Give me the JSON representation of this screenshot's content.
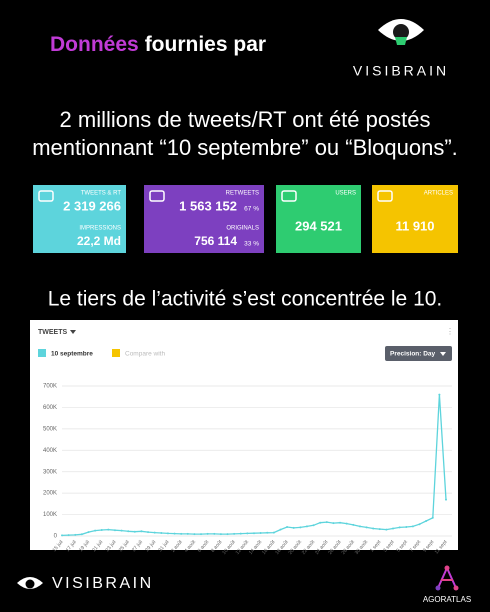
{
  "header": {
    "title_highlight": "Données",
    "title_rest": "fournies par",
    "brand": "VISIBRAIN"
  },
  "headline": [
    "2 millions de tweets/RT ont été postés",
    "mentionnant “10 septembre” ou “Bloquons”."
  ],
  "cards": [
    {
      "label": "TWEETS & RT",
      "value": "2 319 266",
      "sub_label": "IMPRESSIONS",
      "sub_value": "22,2 Md",
      "color": "#5dd4dc"
    },
    {
      "label": "RETWEETS",
      "value": "1 563 152",
      "value_share": "67 %",
      "sub_label": "ORIGINALS",
      "sub_value": "756 114",
      "sub_share": "33 %",
      "color": "#7d40c0"
    },
    {
      "label": "USERS",
      "value": "294 521",
      "color": "#2ecc71"
    },
    {
      "label": "ARTICLES",
      "value": "11 910",
      "color": "#f5c400"
    }
  ],
  "subheadline": "Le tiers de l’activité s’est concentrée le 10.",
  "chart_data": {
    "type": "line",
    "title": "TWEETS",
    "compare_label": "Compare with",
    "compare_color": "#f5c400",
    "precision_label": "Precision: Day",
    "categories": [
      "15 juil",
      null,
      "17 juil",
      null,
      "19 juil",
      null,
      "21 juil",
      null,
      "23 juil",
      null,
      "25 juil",
      null,
      "27 juil",
      null,
      "29 juil",
      null,
      "31 juil",
      null,
      "2 août",
      null,
      "4 août",
      null,
      "6 août",
      null,
      "8 août",
      null,
      "10 août",
      null,
      "12 août",
      null,
      "14 août",
      null,
      "16 août",
      null,
      "18 août",
      null,
      "20 août",
      null,
      "22 août",
      null,
      "24 août",
      null,
      "26 août",
      null,
      "28 août",
      null,
      "30 août",
      null,
      "1 sept",
      null,
      "3 sept",
      null,
      "5 sept",
      null,
      "7 sept",
      null,
      "9 sept",
      null,
      "11 sept"
    ],
    "series": [
      {
        "name": "10 septembre",
        "color": "#5dd4dc",
        "values": [
          3000,
          4000,
          5000,
          8000,
          18000,
          25000,
          28000,
          30000,
          27000,
          25000,
          22000,
          20000,
          22000,
          18000,
          16000,
          14000,
          12000,
          11000,
          10000,
          10000,
          9000,
          9000,
          10000,
          10000,
          9000,
          9000,
          10000,
          11000,
          12000,
          13000,
          14000,
          15000,
          16000,
          30000,
          42000,
          38000,
          40000,
          45000,
          50000,
          62000,
          65000,
          60000,
          62000,
          58000,
          52000,
          45000,
          40000,
          35000,
          32000,
          30000,
          35000,
          40000,
          42000,
          45000,
          55000,
          70000,
          85000,
          660000,
          170000
        ]
      }
    ],
    "ylim": [
      0,
      700000
    ],
    "yticks": [
      0,
      {
        "value": 100000,
        "label": "100K"
      },
      {
        "value": 200000,
        "label": "200K"
      },
      {
        "value": 300000,
        "label": "300K"
      },
      {
        "value": 400000,
        "label": "400K"
      },
      {
        "value": 500000,
        "label": "500K"
      },
      {
        "value": 600000,
        "label": "600K"
      },
      {
        "value": 700000,
        "label": "700K"
      }
    ],
    "grid": true
  },
  "footer": {
    "brand": "VISIBRAIN",
    "partner": "AGORATLAS"
  }
}
